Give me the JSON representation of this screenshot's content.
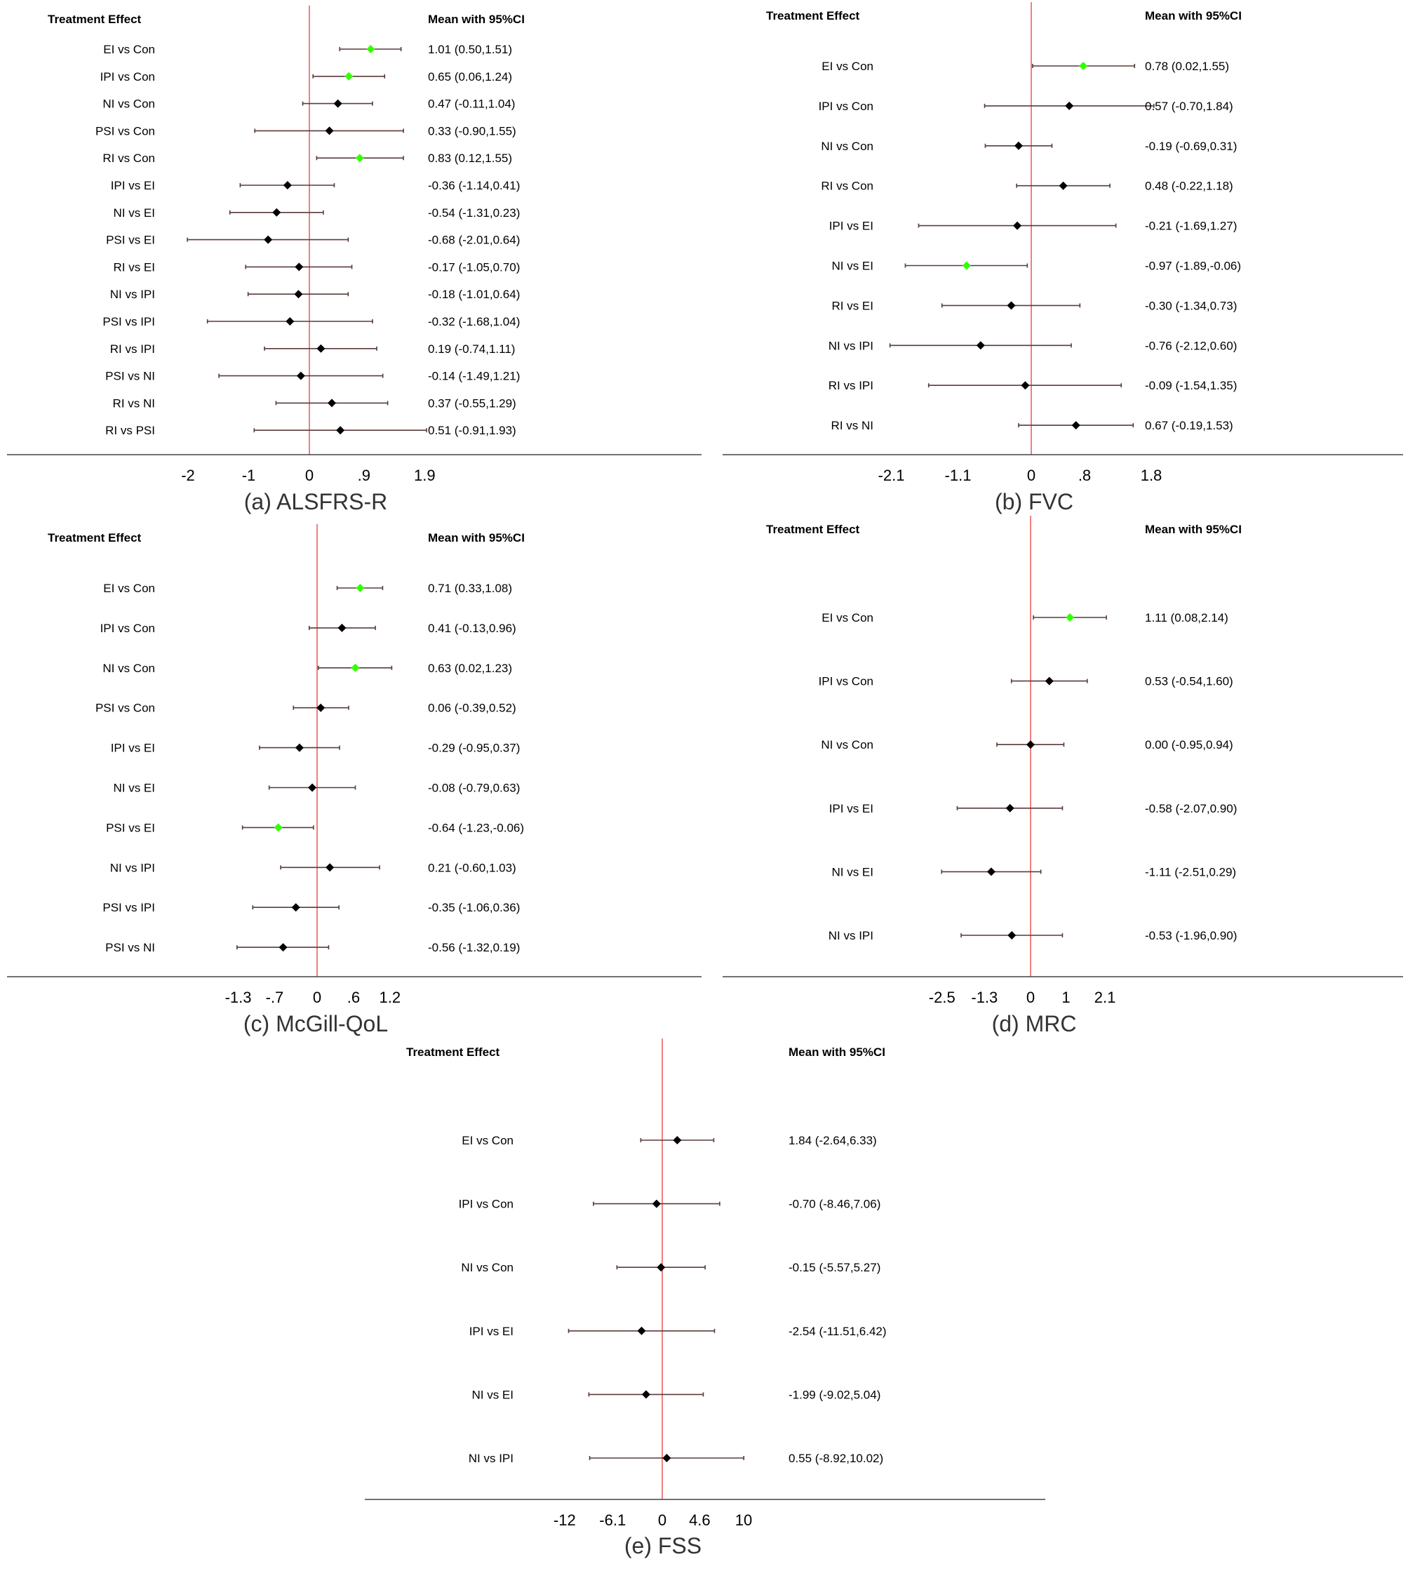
{
  "chart_data": [
    {
      "type": "forest",
      "caption": "(a) ALSFRS-R",
      "label_header": "Treatment Effect",
      "value_header": "Mean with 95%CI",
      "reference_line": 0,
      "xticks": [
        "-2",
        "-1",
        "0",
        ".9",
        "1.9"
      ],
      "xlim": [
        -2.3,
        1.9
      ],
      "rows": [
        {
          "label": "EI vs Con",
          "mean": 1.01,
          "lo": 0.5,
          "hi": 1.51,
          "text": "1.01 (0.50,1.51)",
          "significant": true
        },
        {
          "label": "IPI vs Con",
          "mean": 0.65,
          "lo": 0.06,
          "hi": 1.24,
          "text": "0.65 (0.06,1.24)",
          "significant": true
        },
        {
          "label": "NI vs Con",
          "mean": 0.47,
          "lo": -0.11,
          "hi": 1.04,
          "text": "0.47 (-0.11,1.04)",
          "significant": false
        },
        {
          "label": "PSI vs Con",
          "mean": 0.33,
          "lo": -0.9,
          "hi": 1.55,
          "text": "0.33 (-0.90,1.55)",
          "significant": false
        },
        {
          "label": "RI vs Con",
          "mean": 0.83,
          "lo": 0.12,
          "hi": 1.55,
          "text": "0.83 (0.12,1.55)",
          "significant": true
        },
        {
          "label": "IPI vs EI",
          "mean": -0.36,
          "lo": -1.14,
          "hi": 0.41,
          "text": "-0.36 (-1.14,0.41)",
          "significant": false
        },
        {
          "label": "NI vs EI",
          "mean": -0.54,
          "lo": -1.31,
          "hi": 0.23,
          "text": "-0.54 (-1.31,0.23)",
          "significant": false
        },
        {
          "label": "PSI vs EI",
          "mean": -0.68,
          "lo": -2.01,
          "hi": 0.64,
          "text": "-0.68 (-2.01,0.64)",
          "significant": false
        },
        {
          "label": "RI vs EI",
          "mean": -0.17,
          "lo": -1.05,
          "hi": 0.7,
          "text": "-0.17 (-1.05,0.70)",
          "significant": false
        },
        {
          "label": "NI vs IPI",
          "mean": -0.18,
          "lo": -1.01,
          "hi": 0.64,
          "text": "-0.18 (-1.01,0.64)",
          "significant": false
        },
        {
          "label": "PSI vs IPI",
          "mean": -0.32,
          "lo": -1.68,
          "hi": 1.04,
          "text": "-0.32 (-1.68,1.04)",
          "significant": false
        },
        {
          "label": "RI vs IPI",
          "mean": 0.19,
          "lo": -0.74,
          "hi": 1.11,
          "text": "0.19 (-0.74,1.11)",
          "significant": false
        },
        {
          "label": "PSI vs NI",
          "mean": -0.14,
          "lo": -1.49,
          "hi": 1.21,
          "text": "-0.14 (-1.49,1.21)",
          "significant": false
        },
        {
          "label": "RI vs NI",
          "mean": 0.37,
          "lo": -0.55,
          "hi": 1.29,
          "text": "0.37 (-0.55,1.29)",
          "significant": false
        },
        {
          "label": "RI vs PSI",
          "mean": 0.51,
          "lo": -0.91,
          "hi": 1.93,
          "text": "0.51 (-0.91,1.93)",
          "significant": false
        }
      ]
    },
    {
      "type": "forest",
      "caption": "(b) FVC",
      "label_header": "Treatment Effect",
      "value_header": "Mean with 95%CI",
      "reference_line": 0,
      "xticks": [
        "-2.1",
        "-1.1",
        "0",
        ".8",
        "1.8"
      ],
      "xlim": [
        -2.3,
        1.8
      ],
      "rows": [
        {
          "label": "EI vs Con",
          "mean": 0.78,
          "lo": 0.02,
          "hi": 1.55,
          "text": "0.78 (0.02,1.55)",
          "significant": true
        },
        {
          "label": "IPI vs Con",
          "mean": 0.57,
          "lo": -0.7,
          "hi": 1.84,
          "text": "0.57 (-0.70,1.84)",
          "significant": false
        },
        {
          "label": "NI vs Con",
          "mean": -0.19,
          "lo": -0.69,
          "hi": 0.31,
          "text": "-0.19 (-0.69,0.31)",
          "significant": false
        },
        {
          "label": "RI vs Con",
          "mean": 0.48,
          "lo": -0.22,
          "hi": 1.18,
          "text": "0.48 (-0.22,1.18)",
          "significant": false
        },
        {
          "label": "IPI vs EI",
          "mean": -0.21,
          "lo": -1.69,
          "hi": 1.27,
          "text": "-0.21 (-1.69,1.27)",
          "significant": false
        },
        {
          "label": "NI vs EI",
          "mean": -0.97,
          "lo": -1.89,
          "hi": -0.06,
          "text": "-0.97 (-1.89,-0.06)",
          "significant": true
        },
        {
          "label": "RI vs EI",
          "mean": -0.3,
          "lo": -1.34,
          "hi": 0.73,
          "text": "-0.30 (-1.34,0.73)",
          "significant": false
        },
        {
          "label": "NI vs IPI",
          "mean": -0.76,
          "lo": -2.12,
          "hi": 0.6,
          "text": "-0.76 (-2.12,0.60)",
          "significant": false
        },
        {
          "label": "RI vs IPI",
          "mean": -0.09,
          "lo": -1.54,
          "hi": 1.35,
          "text": "-0.09 (-1.54,1.35)",
          "significant": false
        },
        {
          "label": "RI vs NI",
          "mean": 0.67,
          "lo": -0.19,
          "hi": 1.53,
          "text": "0.67 (-0.19,1.53)",
          "significant": false
        }
      ]
    },
    {
      "type": "forest",
      "caption": "(c) McGill-QoL",
      "label_header": "Treatment Effect",
      "value_header": "Mean with 95%CI",
      "reference_line": 0,
      "xticks": [
        "-1.3",
        "-.7",
        "0",
        ".6",
        "1.2"
      ],
      "xlim": [
        -1.45,
        1.2
      ],
      "rows": [
        {
          "label": "EI vs Con",
          "mean": 0.71,
          "lo": 0.33,
          "hi": 1.08,
          "text": "0.71 (0.33,1.08)",
          "significant": true
        },
        {
          "label": "IPI vs Con",
          "mean": 0.41,
          "lo": -0.13,
          "hi": 0.96,
          "text": "0.41 (-0.13,0.96)",
          "significant": false
        },
        {
          "label": "NI vs Con",
          "mean": 0.63,
          "lo": 0.02,
          "hi": 1.23,
          "text": "0.63 (0.02,1.23)",
          "significant": true
        },
        {
          "label": "PSI vs Con",
          "mean": 0.06,
          "lo": -0.39,
          "hi": 0.52,
          "text": "0.06 (-0.39,0.52)",
          "significant": false
        },
        {
          "label": "IPI vs EI",
          "mean": -0.29,
          "lo": -0.95,
          "hi": 0.37,
          "text": "-0.29 (-0.95,0.37)",
          "significant": false
        },
        {
          "label": "NI vs EI",
          "mean": -0.08,
          "lo": -0.79,
          "hi": 0.63,
          "text": "-0.08 (-0.79,0.63)",
          "significant": false
        },
        {
          "label": "PSI vs EI",
          "mean": -0.64,
          "lo": -1.23,
          "hi": -0.06,
          "text": "-0.64 (-1.23,-0.06)",
          "significant": true
        },
        {
          "label": "NI vs IPI",
          "mean": 0.21,
          "lo": -0.6,
          "hi": 1.03,
          "text": "0.21 (-0.60,1.03)",
          "significant": false
        },
        {
          "label": "PSI vs IPI",
          "mean": -0.35,
          "lo": -1.06,
          "hi": 0.36,
          "text": "-0.35 (-1.06,0.36)",
          "significant": false
        },
        {
          "label": "PSI vs NI",
          "mean": -0.56,
          "lo": -1.32,
          "hi": 0.19,
          "text": "-0.56 (-1.32,0.19)",
          "significant": false
        }
      ]
    },
    {
      "type": "forest",
      "caption": "(d) MRC",
      "label_header": "Treatment Effect",
      "value_header": "Mean with 95%CI",
      "reference_line": 0,
      "xticks": [
        "-2.5",
        "-1.3",
        "0",
        "1",
        "2.1"
      ],
      "xlim": [
        -2.65,
        2.1
      ],
      "rows": [
        {
          "label": "EI vs Con",
          "mean": 1.11,
          "lo": 0.08,
          "hi": 2.14,
          "text": "1.11 (0.08,2.14)",
          "significant": true
        },
        {
          "label": "IPI vs Con",
          "mean": 0.53,
          "lo": -0.54,
          "hi": 1.6,
          "text": "0.53 (-0.54,1.60)",
          "significant": false
        },
        {
          "label": "NI vs Con",
          "mean": 0.0,
          "lo": -0.95,
          "hi": 0.94,
          "text": "0.00 (-0.95,0.94)",
          "significant": false
        },
        {
          "label": "IPI vs EI",
          "mean": -0.58,
          "lo": -2.07,
          "hi": 0.9,
          "text": "-0.58 (-2.07,0.90)",
          "significant": false
        },
        {
          "label": "NI vs EI",
          "mean": -1.11,
          "lo": -2.51,
          "hi": 0.29,
          "text": "-1.11 (-2.51,0.29)",
          "significant": false
        },
        {
          "label": "NI vs IPI",
          "mean": -0.53,
          "lo": -1.96,
          "hi": 0.9,
          "text": "-0.53 (-1.96,0.90)",
          "significant": false
        }
      ]
    },
    {
      "type": "forest",
      "caption": "(e) FSS",
      "label_header": "Treatment Effect",
      "value_header": "Mean with 95%CI",
      "reference_line": 0,
      "xticks": [
        "-12",
        "-6.1",
        "0",
        "4.6",
        "10"
      ],
      "xlim": [
        -12.8,
        10
      ],
      "rows": [
        {
          "label": "EI vs Con",
          "mean": 1.84,
          "lo": -2.64,
          "hi": 6.33,
          "text": "1.84 (-2.64,6.33)",
          "significant": false
        },
        {
          "label": "IPI vs Con",
          "mean": -0.7,
          "lo": -8.46,
          "hi": 7.06,
          "text": "-0.70 (-8.46,7.06)",
          "significant": false
        },
        {
          "label": "NI vs Con",
          "mean": -0.15,
          "lo": -5.57,
          "hi": 5.27,
          "text": "-0.15 (-5.57,5.27)",
          "significant": false
        },
        {
          "label": "IPI vs EI",
          "mean": -2.54,
          "lo": -11.51,
          "hi": 6.42,
          "text": "-2.54 (-11.51,6.42)",
          "significant": false
        },
        {
          "label": "NI vs EI",
          "mean": -1.99,
          "lo": -9.02,
          "hi": 5.04,
          "text": "-1.99 (-9.02,5.04)",
          "significant": false
        },
        {
          "label": "NI vs IPI",
          "mean": 0.55,
          "lo": -8.92,
          "hi": 10.02,
          "text": "0.55 (-8.92,10.02)",
          "significant": false
        }
      ]
    }
  ],
  "colors": {
    "reference_line": "#f08080",
    "ci_line": "#5a3a3a",
    "point_default": "#000000",
    "point_significant": "#33ff00",
    "axis": "#444444"
  }
}
